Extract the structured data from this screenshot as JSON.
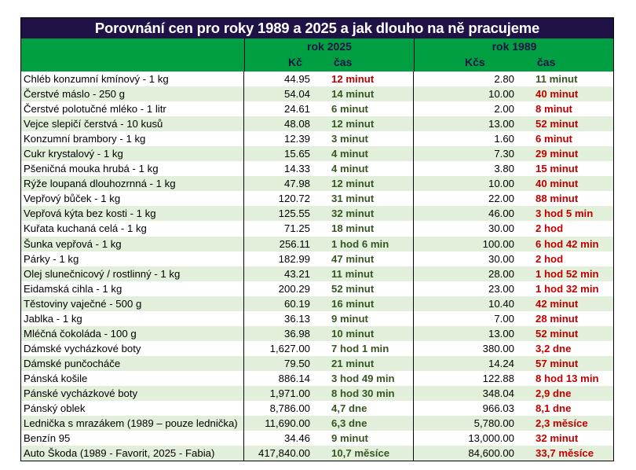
{
  "title": "Porovnání cen pro roky 1989 a 2025 a jak dlouho na ně pracujeme",
  "headers": {
    "year2025": "rok 2025",
    "year1989": "rok 1989",
    "price2025": "Kč",
    "time2025": "čas",
    "price1989": "Kčs",
    "time1989": "čas"
  },
  "colors": {
    "title_bg": "#201147",
    "header_bg": "#00a042",
    "alt_row_bg": "#e2efda",
    "shorter_time": "#375623",
    "longer_time": "#c00000"
  },
  "rows": [
    {
      "item": "Chléb konzumní kmínový - 1 kg",
      "price2025": "44.95",
      "time2025": "12 minut",
      "price1989": "2.80",
      "time1989": "11 minut",
      "c25": "red",
      "c89": "green"
    },
    {
      "item": "Čerstvé máslo - 250 g",
      "price2025": "54.04",
      "time2025": "14 minut",
      "price1989": "10.00",
      "time1989": "40 minut",
      "c25": "green",
      "c89": "red"
    },
    {
      "item": "Čerstvé polotučné mléko - 1 litr",
      "price2025": "24.61",
      "time2025": "6 minut",
      "price1989": "2.00",
      "time1989": "8 minut",
      "c25": "green",
      "c89": "red"
    },
    {
      "item": "Vejce slepičí čerstvá - 10 kusů",
      "price2025": "48.08",
      "time2025": "12 minut",
      "price1989": "13.00",
      "time1989": "52 minut",
      "c25": "green",
      "c89": "red"
    },
    {
      "item": "Konzumní brambory - 1 kg",
      "price2025": "12.39",
      "time2025": "3 minut",
      "price1989": "1.60",
      "time1989": "6 minut",
      "c25": "green",
      "c89": "red"
    },
    {
      "item": "Cukr krystalový - 1 kg",
      "price2025": "15.65",
      "time2025": "4 minut",
      "price1989": "7.30",
      "time1989": "29 minut",
      "c25": "green",
      "c89": "red"
    },
    {
      "item": "Pšeničná mouka hrubá - 1 kg",
      "price2025": "14.33",
      "time2025": "4 minut",
      "price1989": "3.80",
      "time1989": "15 minut",
      "c25": "green",
      "c89": "red"
    },
    {
      "item": "Rýže loupaná dlouhozrnná  - 1 kg",
      "price2025": "47.98",
      "time2025": "12 minut",
      "price1989": "10.00",
      "time1989": "40 minut",
      "c25": "green",
      "c89": "red"
    },
    {
      "item": "Vepřový bůček - 1 kg",
      "price2025": "120.72",
      "time2025": "31 minut",
      "price1989": "22.00",
      "time1989": "88 minut",
      "c25": "green",
      "c89": "red"
    },
    {
      "item": "Vepřová kýta bez kosti  - 1 kg",
      "price2025": "125.55",
      "time2025": "32 minut",
      "price1989": "46.00",
      "time1989": "3 hod 5 min",
      "c25": "green",
      "c89": "red"
    },
    {
      "item": "Kuřata kuchaná celá  - 1 kg",
      "price2025": "71.25",
      "time2025": "18 minut",
      "price1989": "30.00",
      "time1989": "2 hod",
      "c25": "green",
      "c89": "red"
    },
    {
      "item": "Šunka vepřová - 1 kg",
      "price2025": "256.11",
      "time2025": "1 hod 6 min",
      "price1989": "100.00",
      "time1989": "6 hod 42 min",
      "c25": "green",
      "c89": "red"
    },
    {
      "item": "Párky  - 1 kg",
      "price2025": "182.99",
      "time2025": "47 minut",
      "price1989": "30.00",
      "time1989": "2 hod",
      "c25": "green",
      "c89": "red"
    },
    {
      "item": "Olej slunečnicový / rostlinný  - 1 kg",
      "price2025": "43.21",
      "time2025": "11 minut",
      "price1989": "28.00",
      "time1989": "1 hod 52 min",
      "c25": "green",
      "c89": "red"
    },
    {
      "item": "Eidamská cihla  - 1 kg",
      "price2025": "200.29",
      "time2025": "52 minut",
      "price1989": "23.00",
      "time1989": "1 hod 32 min",
      "c25": "green",
      "c89": "red"
    },
    {
      "item": "Těstoviny vaječné  - 500 g",
      "price2025": "60.19",
      "time2025": "16 minut",
      "price1989": "10.40",
      "time1989": "42 minut",
      "c25": "green",
      "c89": "red"
    },
    {
      "item": "Jablka - 1 kg",
      "price2025": "36.13",
      "time2025": "9 minut",
      "price1989": "7.00",
      "time1989": "28 minut",
      "c25": "green",
      "c89": "red"
    },
    {
      "item": "Mléčná čokoláda - 100 g",
      "price2025": "36.98",
      "time2025": "10 minut",
      "price1989": "13.00",
      "time1989": "52 minut",
      "c25": "green",
      "c89": "red"
    },
    {
      "item": "Dámské vycházkové boty",
      "price2025": "1,627.00",
      "time2025": "7 hod 1 min",
      "price1989": "380.00",
      "time1989": "3,2 dne",
      "c25": "green",
      "c89": "red"
    },
    {
      "item": "Dámské punčocháče",
      "price2025": "79.50",
      "time2025": "21 minut",
      "price1989": "14.24",
      "time1989": "57 minut",
      "c25": "green",
      "c89": "red"
    },
    {
      "item": "Pánská košile",
      "price2025": "886.14",
      "time2025": "3 hod 49 min",
      "price1989": "122.88",
      "time1989": "8 hod 13 min",
      "c25": "green",
      "c89": "red"
    },
    {
      "item": "Pánské vycházkové boty",
      "price2025": "1,971.00",
      "time2025": "8 hod 30 min",
      "price1989": "348.04",
      "time1989": "2,9 dne",
      "c25": "green",
      "c89": "red"
    },
    {
      "item": "Pánský oblek",
      "price2025": "8,786.00",
      "time2025": "4,7 dne",
      "price1989": "966.03",
      "time1989": "8,1 dne",
      "c25": "green",
      "c89": "red"
    },
    {
      "item": "Lednička s mrazákem (1989 – pouze lednička)",
      "price2025": "11,690.00",
      "time2025": "6,3 dne",
      "price1989": "5,780.00",
      "time1989": "2,3 měsíce",
      "c25": "green",
      "c89": "red"
    },
    {
      "item": "Benzín 95",
      "price2025": "34.46",
      "time2025": "9 minut",
      "price1989": "13,000.00",
      "time1989": "32 minut",
      "c25": "green",
      "c89": "red"
    },
    {
      "item": "Auto Škoda (1989 - Favorit, 2025 - Fabia)",
      "price2025": "417,840.00",
      "time2025": "10,7 měsíce",
      "price1989": "84,600.00",
      "time1989": "33,7 měsíce",
      "c25": "green",
      "c89": "red"
    }
  ]
}
